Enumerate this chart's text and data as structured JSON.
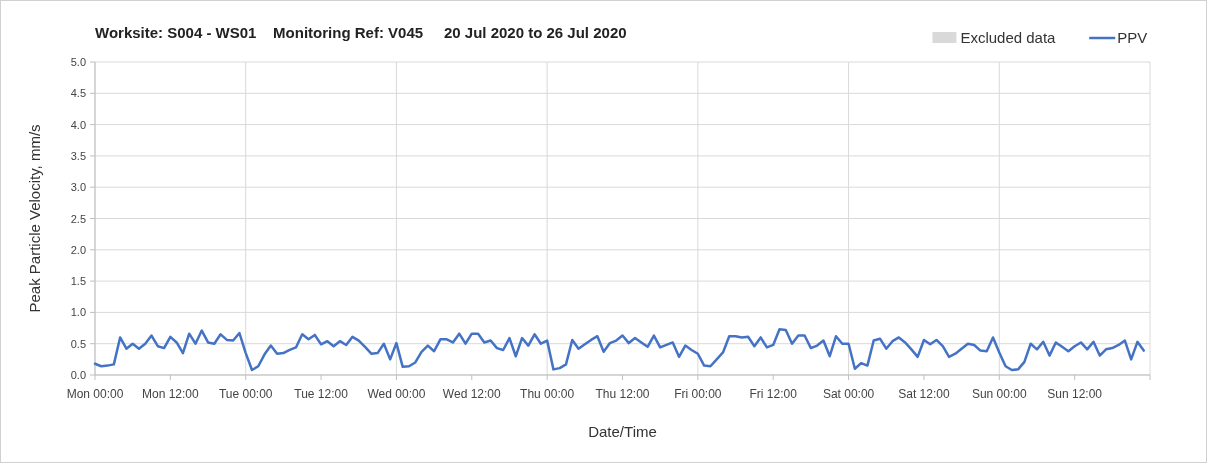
{
  "chart_data": {
    "type": "line",
    "title": "Worksite: S004 - WS01    Monitoring Ref: V045     20 Jul 2020 to 26 Jul 2020",
    "xlabel": "Date/Time",
    "ylabel": "Peak Particle Velocity, mm/s",
    "xlim": [
      "2020-07-20T00:00",
      "2020-07-27T00:00"
    ],
    "xticks": [
      {
        "value": "2020-07-20T00:00",
        "label": "Mon 00:00"
      },
      {
        "value": "2020-07-20T12:00",
        "label": "Mon 12:00"
      },
      {
        "value": "2020-07-21T00:00",
        "label": "Tue 00:00"
      },
      {
        "value": "2020-07-21T12:00",
        "label": "Tue 12:00"
      },
      {
        "value": "2020-07-22T00:00",
        "label": "Wed 00:00"
      },
      {
        "value": "2020-07-22T12:00",
        "label": "Wed 12:00"
      },
      {
        "value": "2020-07-23T00:00",
        "label": "Thu 00:00"
      },
      {
        "value": "2020-07-23T12:00",
        "label": "Thu 12:00"
      },
      {
        "value": "2020-07-24T00:00",
        "label": "Fri 00:00"
      },
      {
        "value": "2020-07-24T12:00",
        "label": "Fri 12:00"
      },
      {
        "value": "2020-07-25T00:00",
        "label": "Sat 00:00"
      },
      {
        "value": "2020-07-25T12:00",
        "label": "Sat 12:00"
      },
      {
        "value": "2020-07-26T00:00",
        "label": "Sun 00:00"
      },
      {
        "value": "2020-07-26T12:00",
        "label": "Sun 12:00"
      },
      {
        "value": "2020-07-27T00:00",
        "label": null
      }
    ],
    "ylim": [
      0,
      5
    ],
    "yticks": [
      {
        "value": 0,
        "label": "0.0"
      },
      {
        "value": 0.5,
        "label": "0.5"
      },
      {
        "value": 1,
        "label": "1.0"
      },
      {
        "value": 1.5,
        "label": "1.5"
      },
      {
        "value": 2,
        "label": "2.0"
      },
      {
        "value": 2.5,
        "label": "2.5"
      },
      {
        "value": 3,
        "label": "3.0"
      },
      {
        "value": 3.5,
        "label": "3.5"
      },
      {
        "value": 4,
        "label": "4.0"
      },
      {
        "value": 4.5,
        "label": "4.5"
      },
      {
        "value": 5,
        "label": "5.0"
      }
    ],
    "grid": true,
    "legend": "top right",
    "marker": "none",
    "line_style": "solid",
    "x": [
      "2020-07-20T00:00",
      "2020-07-20T01:00",
      "2020-07-20T02:00",
      "2020-07-20T03:00",
      "2020-07-20T04:00",
      "2020-07-20T05:00",
      "2020-07-20T06:00",
      "2020-07-20T07:00",
      "2020-07-20T08:00",
      "2020-07-20T09:00",
      "2020-07-20T10:00",
      "2020-07-20T11:00",
      "2020-07-20T12:00",
      "2020-07-20T13:00",
      "2020-07-20T14:00",
      "2020-07-20T15:00",
      "2020-07-20T16:00",
      "2020-07-20T17:00",
      "2020-07-20T18:00",
      "2020-07-20T19:00",
      "2020-07-20T20:00",
      "2020-07-20T21:00",
      "2020-07-20T22:00",
      "2020-07-20T23:00",
      "2020-07-21T00:00",
      "2020-07-21T01:00",
      "2020-07-21T02:00",
      "2020-07-21T03:00",
      "2020-07-21T04:00",
      "2020-07-21T05:00",
      "2020-07-21T06:00",
      "2020-07-21T07:00",
      "2020-07-21T08:00",
      "2020-07-21T09:00",
      "2020-07-21T10:00",
      "2020-07-21T11:00",
      "2020-07-21T12:00",
      "2020-07-21T13:00",
      "2020-07-21T14:00",
      "2020-07-21T15:00",
      "2020-07-21T16:00",
      "2020-07-21T17:00",
      "2020-07-21T18:00",
      "2020-07-21T19:00",
      "2020-07-21T20:00",
      "2020-07-21T21:00",
      "2020-07-21T22:00",
      "2020-07-21T23:00",
      "2020-07-22T00:00",
      "2020-07-22T01:00",
      "2020-07-22T02:00",
      "2020-07-22T03:00",
      "2020-07-22T04:00",
      "2020-07-22T05:00",
      "2020-07-22T06:00",
      "2020-07-22T07:00",
      "2020-07-22T08:00",
      "2020-07-22T09:00",
      "2020-07-22T10:00",
      "2020-07-22T11:00",
      "2020-07-22T12:00",
      "2020-07-22T13:00",
      "2020-07-22T14:00",
      "2020-07-22T15:00",
      "2020-07-22T16:00",
      "2020-07-22T17:00",
      "2020-07-22T18:00",
      "2020-07-22T19:00",
      "2020-07-22T20:00",
      "2020-07-22T21:00",
      "2020-07-22T22:00",
      "2020-07-22T23:00",
      "2020-07-23T00:00",
      "2020-07-23T01:00",
      "2020-07-23T02:00",
      "2020-07-23T03:00",
      "2020-07-23T04:00",
      "2020-07-23T05:00",
      "2020-07-23T06:00",
      "2020-07-23T07:00",
      "2020-07-23T08:00",
      "2020-07-23T09:00",
      "2020-07-23T10:00",
      "2020-07-23T11:00",
      "2020-07-23T12:00",
      "2020-07-23T13:00",
      "2020-07-23T14:00",
      "2020-07-23T15:00",
      "2020-07-23T16:00",
      "2020-07-23T17:00",
      "2020-07-23T18:00",
      "2020-07-23T19:00",
      "2020-07-23T20:00",
      "2020-07-23T21:00",
      "2020-07-23T22:00",
      "2020-07-23T23:00",
      "2020-07-24T00:00",
      "2020-07-24T01:00",
      "2020-07-24T02:00",
      "2020-07-24T03:00",
      "2020-07-24T04:00",
      "2020-07-24T05:00",
      "2020-07-24T06:00",
      "2020-07-24T07:00",
      "2020-07-24T08:00",
      "2020-07-24T09:00",
      "2020-07-24T10:00",
      "2020-07-24T11:00",
      "2020-07-24T12:00",
      "2020-07-24T13:00",
      "2020-07-24T14:00",
      "2020-07-24T15:00",
      "2020-07-24T16:00",
      "2020-07-24T17:00",
      "2020-07-24T18:00",
      "2020-07-24T19:00",
      "2020-07-24T20:00",
      "2020-07-24T21:00",
      "2020-07-24T22:00",
      "2020-07-24T23:00",
      "2020-07-25T00:00",
      "2020-07-25T01:00",
      "2020-07-25T02:00",
      "2020-07-25T03:00",
      "2020-07-25T04:00",
      "2020-07-25T05:00",
      "2020-07-25T06:00",
      "2020-07-25T07:00",
      "2020-07-25T08:00",
      "2020-07-25T09:00",
      "2020-07-25T10:00",
      "2020-07-25T11:00",
      "2020-07-25T12:00",
      "2020-07-25T13:00",
      "2020-07-25T14:00",
      "2020-07-25T15:00",
      "2020-07-25T16:00",
      "2020-07-25T17:00",
      "2020-07-25T18:00",
      "2020-07-25T19:00",
      "2020-07-25T20:00",
      "2020-07-25T21:00",
      "2020-07-25T22:00",
      "2020-07-25T23:00",
      "2020-07-26T00:00",
      "2020-07-26T01:00",
      "2020-07-26T02:00",
      "2020-07-26T03:00",
      "2020-07-26T04:00",
      "2020-07-26T05:00",
      "2020-07-26T06:00",
      "2020-07-26T07:00",
      "2020-07-26T08:00",
      "2020-07-26T09:00",
      "2020-07-26T10:00",
      "2020-07-26T11:00",
      "2020-07-26T12:00",
      "2020-07-26T13:00",
      "2020-07-26T14:00",
      "2020-07-26T15:00",
      "2020-07-26T16:00",
      "2020-07-26T17:00",
      "2020-07-26T18:00",
      "2020-07-26T19:00",
      "2020-07-26T20:00",
      "2020-07-26T21:00",
      "2020-07-26T22:00",
      "2020-07-26T23:00"
    ],
    "series": [
      {
        "name": "Excluded data",
        "type": "area",
        "color": "#d9d9d9",
        "values": [
          null,
          null,
          null,
          null,
          null,
          null,
          null,
          null,
          null,
          null,
          null,
          null,
          null,
          null,
          null,
          null,
          null,
          null,
          null,
          null,
          null,
          null,
          null,
          null,
          null,
          null,
          null,
          null,
          null,
          null,
          null,
          null,
          null,
          null,
          null,
          null,
          null,
          null,
          null,
          null,
          null,
          null,
          null,
          null,
          null,
          null,
          null,
          null,
          null,
          null,
          null,
          null,
          null,
          null,
          null,
          null,
          null,
          null,
          null,
          null,
          null,
          null,
          null,
          null,
          null,
          null,
          null,
          null,
          null,
          null,
          null,
          null,
          null,
          null,
          null,
          null,
          null,
          null,
          null,
          null,
          null,
          null,
          null,
          null,
          null,
          null,
          null,
          null,
          null,
          null,
          null,
          null,
          null,
          null,
          null,
          null,
          null,
          null,
          null,
          null,
          null,
          null,
          null,
          null,
          null,
          null,
          null,
          null,
          null,
          null,
          null,
          null,
          null,
          null,
          null,
          null,
          null,
          null,
          null,
          null,
          null,
          null,
          null,
          null,
          null,
          null,
          null,
          null,
          null,
          null,
          null,
          null,
          null,
          null,
          null,
          null,
          null,
          null,
          null,
          null,
          null,
          null,
          null,
          null,
          null,
          null,
          null,
          null,
          null,
          null,
          null,
          null,
          null,
          null,
          null,
          null,
          null,
          null,
          null,
          null,
          null,
          null,
          null,
          null,
          null,
          null,
          null,
          null
        ]
      },
      {
        "name": "PPV",
        "color": "#4472c4",
        "values": [
          0.18,
          0.14,
          0.15,
          0.17,
          0.6,
          0.42,
          0.5,
          0.42,
          0.5,
          0.63,
          0.46,
          0.43,
          0.61,
          0.52,
          0.35,
          0.66,
          0.5,
          0.71,
          0.52,
          0.5,
          0.65,
          0.56,
          0.55,
          0.67,
          0.35,
          0.08,
          0.14,
          0.33,
          0.47,
          0.34,
          0.35,
          0.4,
          0.44,
          0.65,
          0.57,
          0.64,
          0.49,
          0.54,
          0.46,
          0.54,
          0.48,
          0.61,
          0.55,
          0.45,
          0.34,
          0.35,
          0.5,
          0.25,
          0.51,
          0.13,
          0.14,
          0.2,
          0.37,
          0.47,
          0.38,
          0.57,
          0.57,
          0.52,
          0.66,
          0.5,
          0.66,
          0.66,
          0.52,
          0.55,
          0.43,
          0.4,
          0.59,
          0.3,
          0.59,
          0.47,
          0.65,
          0.5,
          0.55,
          0.09,
          0.11,
          0.17,
          0.56,
          0.42,
          0.49,
          0.56,
          0.62,
          0.37,
          0.51,
          0.55,
          0.63,
          0.51,
          0.59,
          0.52,
          0.45,
          0.63,
          0.44,
          0.48,
          0.52,
          0.29,
          0.47,
          0.4,
          0.34,
          0.15,
          0.14,
          0.25,
          0.36,
          0.62,
          0.62,
          0.6,
          0.61,
          0.46,
          0.6,
          0.44,
          0.48,
          0.73,
          0.72,
          0.5,
          0.63,
          0.63,
          0.43,
          0.47,
          0.55,
          0.3,
          0.62,
          0.5,
          0.5,
          0.1,
          0.19,
          0.15,
          0.55,
          0.58,
          0.42,
          0.54,
          0.6,
          0.52,
          0.41,
          0.29,
          0.56,
          0.49,
          0.56,
          0.46,
          0.29,
          0.34,
          0.42,
          0.5,
          0.48,
          0.39,
          0.38,
          0.6,
          0.36,
          0.14,
          0.08,
          0.09,
          0.21,
          0.5,
          0.41,
          0.53,
          0.31,
          0.52,
          0.45,
          0.38,
          0.46,
          0.52,
          0.41,
          0.53,
          0.31,
          0.41,
          0.43,
          0.48,
          0.55,
          0.25,
          0.53,
          0.39
        ]
      }
    ]
  }
}
